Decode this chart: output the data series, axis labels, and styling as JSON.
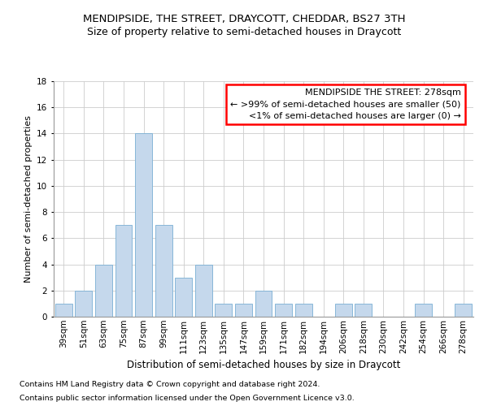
{
  "title": "MENDIPSIDE, THE STREET, DRAYCOTT, CHEDDAR, BS27 3TH",
  "subtitle": "Size of property relative to semi-detached houses in Draycott",
  "xlabel": "Distribution of semi-detached houses by size in Draycott",
  "ylabel": "Number of semi-detached properties",
  "bar_color": "#c5d8ec",
  "bar_edge_color": "#7aafd4",
  "categories": [
    "39sqm",
    "51sqm",
    "63sqm",
    "75sqm",
    "87sqm",
    "99sqm",
    "111sqm",
    "123sqm",
    "135sqm",
    "147sqm",
    "159sqm",
    "171sqm",
    "182sqm",
    "194sqm",
    "206sqm",
    "218sqm",
    "230sqm",
    "242sqm",
    "254sqm",
    "266sqm",
    "278sqm"
  ],
  "values": [
    1,
    2,
    4,
    7,
    14,
    7,
    3,
    4,
    1,
    1,
    2,
    1,
    1,
    0,
    1,
    1,
    0,
    0,
    1,
    0,
    1
  ],
  "ylim": [
    0,
    18
  ],
  "yticks": [
    0,
    2,
    4,
    6,
    8,
    10,
    12,
    14,
    16,
    18
  ],
  "annotation_title": "MENDIPSIDE THE STREET: 278sqm",
  "annotation_line1": "← >99% of semi-detached houses are smaller (50)",
  "annotation_line2": "<1% of semi-detached houses are larger (0) →",
  "footer_line1": "Contains HM Land Registry data © Crown copyright and database right 2024.",
  "footer_line2": "Contains public sector information licensed under the Open Government Licence v3.0.",
  "grid_color": "#cccccc",
  "background_color": "#ffffff",
  "title_fontsize": 9.5,
  "subtitle_fontsize": 9,
  "xlabel_fontsize": 8.5,
  "ylabel_fontsize": 8,
  "tick_fontsize": 7.5,
  "annotation_fontsize": 8,
  "footer_fontsize": 6.8
}
